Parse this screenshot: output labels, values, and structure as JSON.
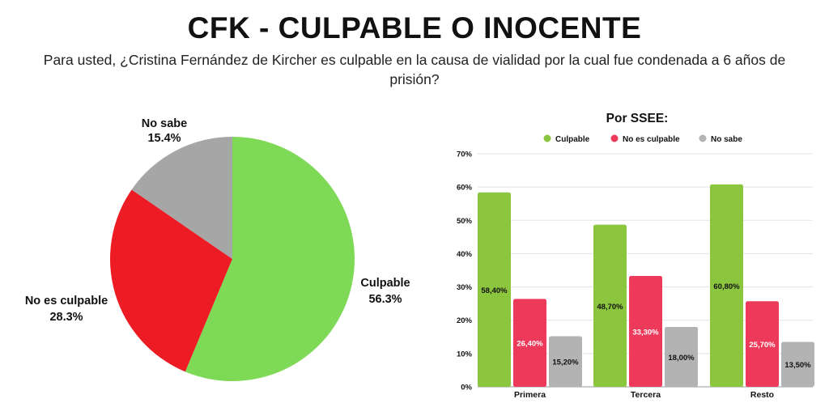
{
  "header": {
    "title": "CFK - CULPABLE O INOCENTE",
    "subtitle": "Para usted, ¿Cristina Fernández de Kircher es culpable en la causa de vialidad por la cual fue condenada a 6 años de prisión?"
  },
  "chart_data": [
    {
      "type": "pie",
      "slices": [
        {
          "label": "Culpable",
          "value": 56.3,
          "value_label": "56.3%",
          "color": "#7ed957"
        },
        {
          "label": "No es culpable",
          "value": 28.3,
          "value_label": "28.3%",
          "color": "#ed1c24"
        },
        {
          "label": "No sabe",
          "value": 15.4,
          "value_label": "15.4%",
          "color": "#a6a6a6"
        }
      ],
      "labels_outside": true
    },
    {
      "type": "bar",
      "title": "Por SSEE:",
      "categories": [
        "Primera",
        "Tercera",
        "Resto"
      ],
      "series": [
        {
          "name": "Culpable",
          "color": "#8cc63f",
          "values": [
            58.4,
            48.7,
            60.8
          ],
          "labels": [
            "58,40%",
            "48,70%",
            "60,80%"
          ]
        },
        {
          "name": "No es culpable",
          "color": "#ee3a5a",
          "values": [
            26.4,
            33.3,
            25.7
          ],
          "labels": [
            "26,40%",
            "33,30%",
            "25,70%"
          ]
        },
        {
          "name": "No sabe",
          "color": "#b3b3b3",
          "values": [
            15.2,
            18.0,
            13.5
          ],
          "labels": [
            "15,20%",
            "18,00%",
            "13,50%"
          ]
        }
      ],
      "ylim": [
        0,
        70
      ],
      "yticks": [
        0,
        10,
        20,
        30,
        40,
        50,
        60,
        70
      ],
      "ytick_labels": [
        "0%",
        "10%",
        "20%",
        "30%",
        "40%",
        "50%",
        "60%",
        "70%"
      ],
      "grid": true,
      "legend": "top"
    }
  ]
}
